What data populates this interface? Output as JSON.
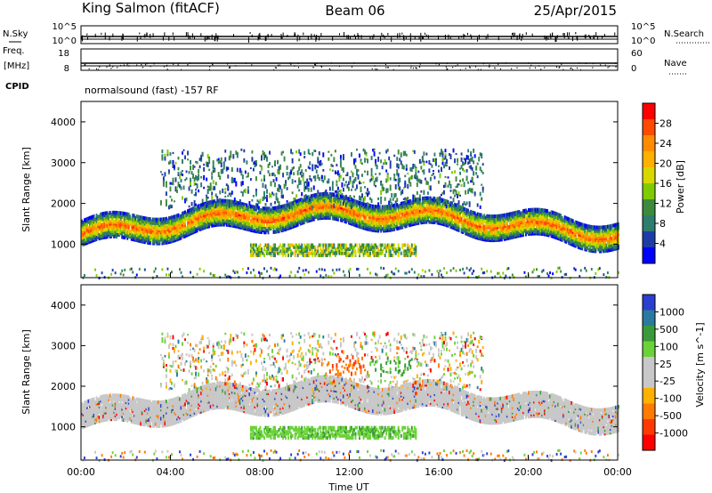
{
  "header": {
    "station": "King Salmon (fitACF)",
    "beam": "Beam 06",
    "date": "25/Apr/2015"
  },
  "housekeeping": {
    "nsky_label": "N.Sky",
    "nsearch_label": "N.Search",
    "freq_label_1": "Freq.",
    "freq_label_2": "[MHz]",
    "nave_label": "Nave",
    "cpid_label": "CPID",
    "noise_ticks_left": [
      "10^5",
      "10^0"
    ],
    "noise_ticks_right": [
      "10^5",
      "10^0"
    ],
    "freq_ticks": [
      "18",
      "8"
    ],
    "nave_ticks": [
      "60",
      "0"
    ],
    "mode_text": "normalsound (fast) -157 RF"
  },
  "chart_data": [
    {
      "type": "heatmap",
      "panel": "power",
      "ylabel": "Slant Range [km]",
      "xlabel": "",
      "ylim": [
        180,
        4500
      ],
      "xlim_hours": [
        0,
        24
      ],
      "y_ticks": [
        "1000",
        "2000",
        "3000",
        "4000"
      ],
      "colorbar": {
        "label": "Power [dB]",
        "ticks": [
          "28",
          "24",
          "20",
          "16",
          "12",
          "8",
          "4"
        ],
        "colors": [
          "#ff0000",
          "#ff4a00",
          "#ff8c00",
          "#ffb000",
          "#d8d800",
          "#7ecc00",
          "#3d8a3d",
          "#2e7d6f",
          "#1e3ca8",
          "#0000ff"
        ]
      },
      "features": [
        {
          "name": "main band",
          "hours": [
            0,
            24
          ],
          "range_km": [
            1300,
            1850
          ],
          "level_db": [
            8,
            28
          ]
        },
        {
          "name": "upper diffuse",
          "hours": [
            3.5,
            18
          ],
          "range_km": [
            2000,
            3400
          ],
          "level_db": [
            4,
            12
          ]
        },
        {
          "name": "lower patch",
          "hours": [
            7.5,
            15
          ],
          "range_km": [
            700,
            1000
          ],
          "level_db": [
            8,
            20
          ]
        }
      ]
    },
    {
      "type": "heatmap",
      "panel": "velocity",
      "ylabel": "Slant Range [km]",
      "xlabel": "Time UT",
      "ylim": [
        180,
        4500
      ],
      "xlim_hours": [
        0,
        24
      ],
      "x_ticks": [
        "00:00",
        "04:00",
        "08:00",
        "12:00",
        "16:00",
        "20:00",
        "00:00"
      ],
      "y_ticks": [
        "1000",
        "2000",
        "3000",
        "4000"
      ],
      "colorbar": {
        "label": "Velocity [m s^-1]",
        "ticks": [
          "1000",
          "500",
          "100",
          "25",
          "-25",
          "-100",
          "-500",
          "-1000"
        ],
        "colors": [
          "#2a3fd0",
          "#2a7aa0",
          "#3a9a3a",
          "#6cd23a",
          "#c8c8c8",
          "#c8c8c8",
          "#ffb000",
          "#ff7a00",
          "#ff3a00",
          "#ff0000"
        ]
      },
      "features": [
        {
          "name": "ground scatter band",
          "hours": [
            0,
            24
          ],
          "range_km": [
            1250,
            1950
          ],
          "velocity": [
            -25,
            25
          ]
        },
        {
          "name": "lower patch",
          "hours": [
            7.5,
            15
          ],
          "range_km": [
            750,
            950
          ],
          "velocity": [
            100,
            500
          ]
        },
        {
          "name": "orange patch",
          "hours": [
            10.8,
            12.8
          ],
          "range_km": [
            2300,
            2800
          ],
          "velocity": [
            -500,
            -100
          ]
        },
        {
          "name": "green patch",
          "hours": [
            12.8,
            15
          ],
          "range_km": [
            2300,
            2700
          ],
          "velocity": [
            100,
            500
          ]
        }
      ]
    }
  ]
}
